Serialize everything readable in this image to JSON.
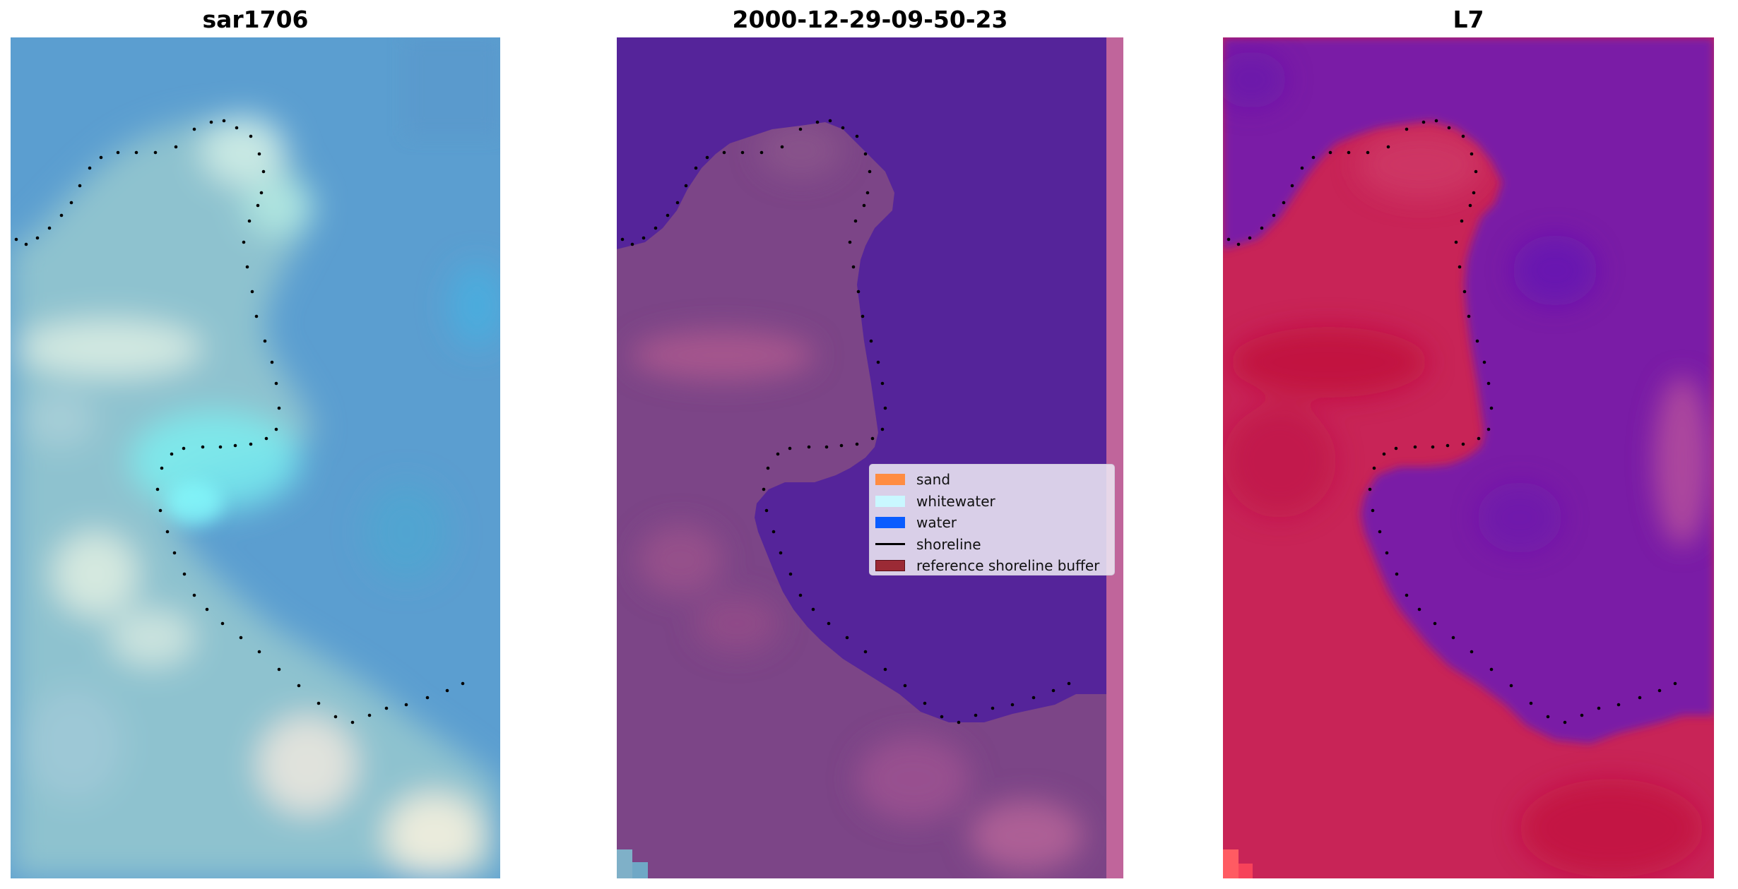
{
  "panels": [
    {
      "id": "rgb",
      "title": "sar1706"
    },
    {
      "id": "classified",
      "title": "2000-12-29-09-50-23"
    },
    {
      "id": "index",
      "title": "L7"
    }
  ],
  "legend": {
    "items": [
      {
        "label": "sand",
        "kind": "patch",
        "color": "#ff8c42"
      },
      {
        "label": "whitewater",
        "kind": "patch",
        "color": "#c9f7ff"
      },
      {
        "label": "water",
        "kind": "patch",
        "color": "#0a5cff"
      },
      {
        "label": "shoreline",
        "kind": "line",
        "color": "#000000"
      },
      {
        "label": "reference shoreline buffer",
        "kind": "patch",
        "color": "#9b2a35"
      }
    ]
  },
  "colors": {
    "water_class": "#55249a",
    "land_overlay": "#7c4587",
    "buffer_strip": "#c0659b",
    "index_water": "#7a1fa6",
    "index_land": "#c82457",
    "rgb_water": "#5b9ed0",
    "rgb_light": "#a9d8da"
  }
}
